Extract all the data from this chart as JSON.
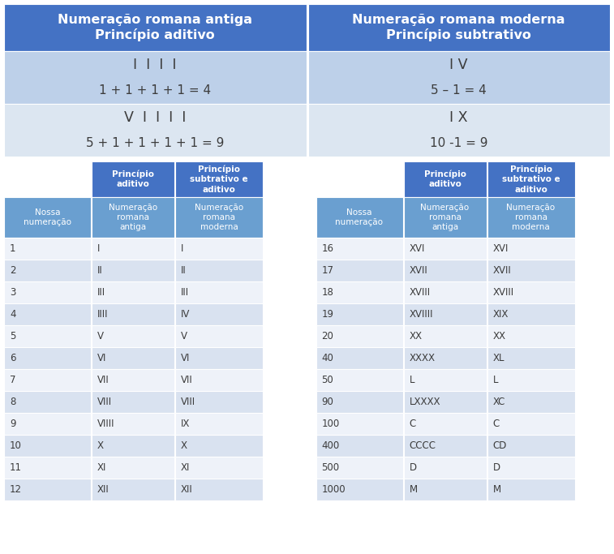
{
  "header_left": "Numeração romana antiga\nPrincípio aditivo",
  "header_right": "Numeração romana moderna\nPrincípio subtrativo",
  "example_rows": [
    {
      "left_top": "I  I  I  I",
      "left_bot": "1 + 1 + 1 + 1 = 4",
      "right_top": "I V",
      "right_bot": "5 – 1 = 4"
    },
    {
      "left_top": "V  I  I  I  I",
      "left_bot": "5 + 1 + 1 + 1 + 1 = 9",
      "right_top": "I X",
      "right_bot": "10 -1 = 9"
    }
  ],
  "col_header1": "Princípio\naditivo",
  "col_header2": "Princípio\nsubtrativo e\naditivo",
  "subheader": [
    "Nossa\nnumeração",
    "Numeração\nromana\nantiga",
    "Numeração\nromana\nmoderna"
  ],
  "table_left": [
    [
      "1",
      "I",
      "I"
    ],
    [
      "2",
      "II",
      "II"
    ],
    [
      "3",
      "III",
      "III"
    ],
    [
      "4",
      "IIII",
      "IV"
    ],
    [
      "5",
      "V",
      "V"
    ],
    [
      "6",
      "VI",
      "VI"
    ],
    [
      "7",
      "VII",
      "VII"
    ],
    [
      "8",
      "VIII",
      "VIII"
    ],
    [
      "9",
      "VIIII",
      "IX"
    ],
    [
      "10",
      "X",
      "X"
    ],
    [
      "11",
      "XI",
      "XI"
    ],
    [
      "12",
      "XII",
      "XII"
    ]
  ],
  "table_right": [
    [
      "16",
      "XVI",
      "XVI"
    ],
    [
      "17",
      "XVII",
      "XVII"
    ],
    [
      "18",
      "XVIII",
      "XVIII"
    ],
    [
      "19",
      "XVIIII",
      "XIX"
    ],
    [
      "20",
      "XX",
      "XX"
    ],
    [
      "40",
      "XXXX",
      "XL"
    ],
    [
      "50",
      "L",
      "L"
    ],
    [
      "90",
      "LXXXX",
      "XC"
    ],
    [
      "100",
      "C",
      "C"
    ],
    [
      "400",
      "CCCC",
      "CD"
    ],
    [
      "500",
      "D",
      "D"
    ],
    [
      "1000",
      "M",
      "M"
    ]
  ],
  "colors": {
    "header_bg": "#4472C4",
    "header_text": "#FFFFFF",
    "ex1_bg": "#BDD0E9",
    "ex2_bg": "#DCE6F1",
    "col_header_bg": "#4472C4",
    "col_header_text": "#FFFFFF",
    "subheader_bg": "#6A9FD0",
    "subheader_text": "#FFFFFF",
    "data_odd": "#EEF2F9",
    "data_even": "#D9E2F0",
    "data_text": "#3C3C3C",
    "bg": "#FFFFFF"
  },
  "figw": 7.57,
  "figh": 6.83,
  "dpi": 100
}
